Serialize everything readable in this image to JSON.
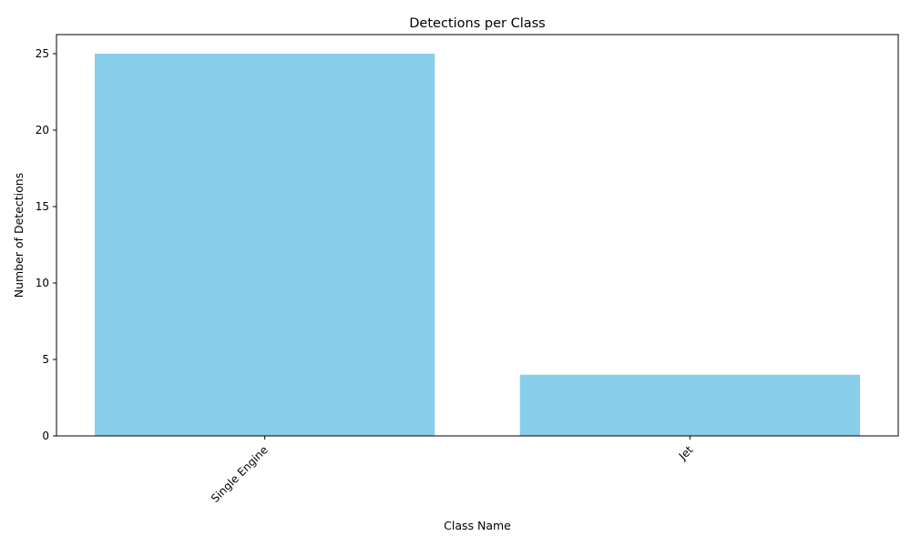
{
  "chart_data": {
    "type": "bar",
    "title": "Detections per Class",
    "xlabel": "Class Name",
    "ylabel": "Number of Detections",
    "categories": [
      "Single Engine",
      "Jet"
    ],
    "values": [
      25,
      4
    ],
    "ylim": [
      0,
      26.25
    ],
    "yticks": [
      0,
      5,
      10,
      15,
      20,
      25
    ],
    "bar_color": "#87CEEB",
    "grid": false,
    "legend": "none"
  }
}
